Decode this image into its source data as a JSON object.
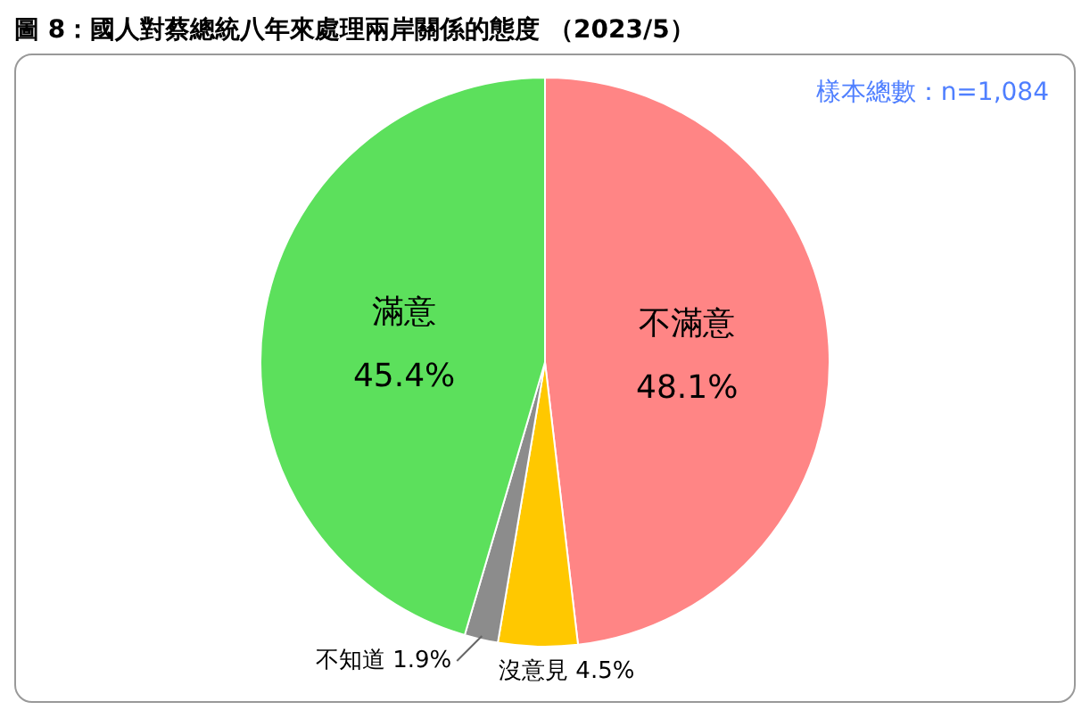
{
  "chart_data": {
    "type": "pie",
    "title": "圖 8：國人對蔡總統八年來處理兩岸關係的態度 （2023/5）",
    "categories": [
      "不滿意",
      "沒意見",
      "不知道",
      "滿意"
    ],
    "values": [
      48.1,
      4.5,
      1.9,
      45.4
    ],
    "value_labels": [
      "48.1%",
      "4.5%",
      "1.9%",
      "45.4%"
    ],
    "colors": [
      "#ff8585",
      "#ffc800",
      "#8c8c8c",
      "#5ce05c"
    ],
    "annotations": [
      "樣本總數：n=1,084"
    ],
    "legend": false
  }
}
